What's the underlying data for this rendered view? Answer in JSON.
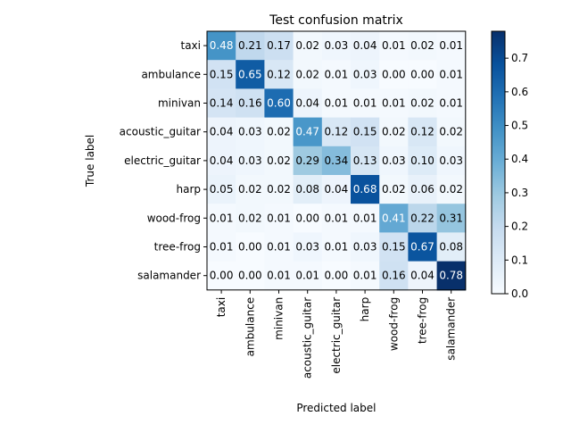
{
  "chart_data": {
    "type": "heatmap",
    "title": "Test confusion matrix",
    "xlabel": "Predicted label",
    "ylabel": "True label",
    "x_categories": [
      "taxi",
      "ambulance",
      "minivan",
      "acoustic_guitar",
      "electric_guitar",
      "harp",
      "wood-frog",
      "tree-frog",
      "salamander"
    ],
    "y_categories": [
      "taxi",
      "ambulance",
      "minivan",
      "acoustic_guitar",
      "electric_guitar",
      "harp",
      "wood-frog",
      "tree-frog",
      "salamander"
    ],
    "values": [
      [
        0.48,
        0.21,
        0.17,
        0.02,
        0.03,
        0.04,
        0.01,
        0.02,
        0.01
      ],
      [
        0.15,
        0.65,
        0.12,
        0.02,
        0.01,
        0.03,
        0.0,
        0.0,
        0.01
      ],
      [
        0.14,
        0.16,
        0.6,
        0.04,
        0.01,
        0.01,
        0.01,
        0.02,
        0.01
      ],
      [
        0.04,
        0.03,
        0.02,
        0.47,
        0.12,
        0.15,
        0.02,
        0.12,
        0.02
      ],
      [
        0.04,
        0.03,
        0.02,
        0.29,
        0.34,
        0.13,
        0.03,
        0.1,
        0.03
      ],
      [
        0.05,
        0.02,
        0.02,
        0.08,
        0.04,
        0.68,
        0.02,
        0.06,
        0.02
      ],
      [
        0.01,
        0.02,
        0.01,
        0.0,
        0.01,
        0.01,
        0.41,
        0.22,
        0.31
      ],
      [
        0.01,
        0.0,
        0.01,
        0.03,
        0.01,
        0.03,
        0.15,
        0.67,
        0.08
      ],
      [
        0.0,
        0.0,
        0.01,
        0.01,
        0.0,
        0.01,
        0.16,
        0.04,
        0.78
      ]
    ],
    "value_format": "2-decimals",
    "colormap": "Blues",
    "color_range": [
      0.0,
      0.78
    ],
    "colorbar": {
      "ticks": [
        0.0,
        0.1,
        0.2,
        0.3,
        0.4,
        0.5,
        0.6,
        0.7
      ],
      "tick_labels": [
        "0.0",
        "0.1",
        "0.2",
        "0.3",
        "0.4",
        "0.5",
        "0.6",
        "0.7"
      ],
      "placement": "right"
    },
    "text_color_light": "#ffffff",
    "text_color_dark": "#000000",
    "grid": false
  }
}
